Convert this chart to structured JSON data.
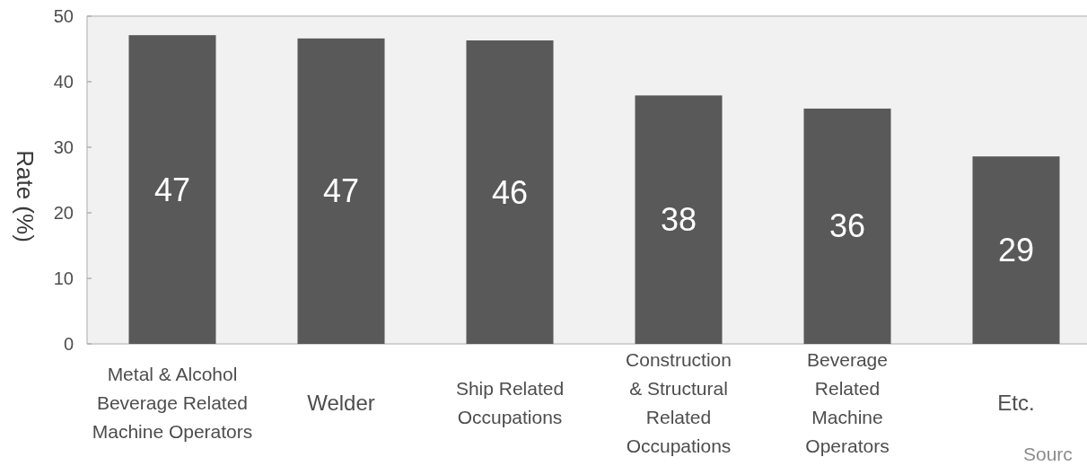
{
  "chart_data": {
    "type": "bar",
    "categories": [
      "Metal & Alcohol\nBeverage Related\nMachine Operators",
      "Welder",
      "Ship Related\nOccupations",
      "Construction\n& Structural\nRelated\nOccupations",
      "Beverage\nRelated\nMachine\nOperators",
      "Etc."
    ],
    "values": [
      47.1,
      46.6,
      46.3,
      37.9,
      35.9,
      28.6
    ],
    "value_labels": [
      "47",
      "47",
      "46",
      "38",
      "36",
      "29"
    ],
    "color": "#595959",
    "ylabel": "Rate (%)",
    "ylim": [
      0,
      50
    ],
    "yticks": [
      0,
      10,
      20,
      30,
      40,
      50
    ],
    "annotations": [
      "Sourc"
    ]
  }
}
